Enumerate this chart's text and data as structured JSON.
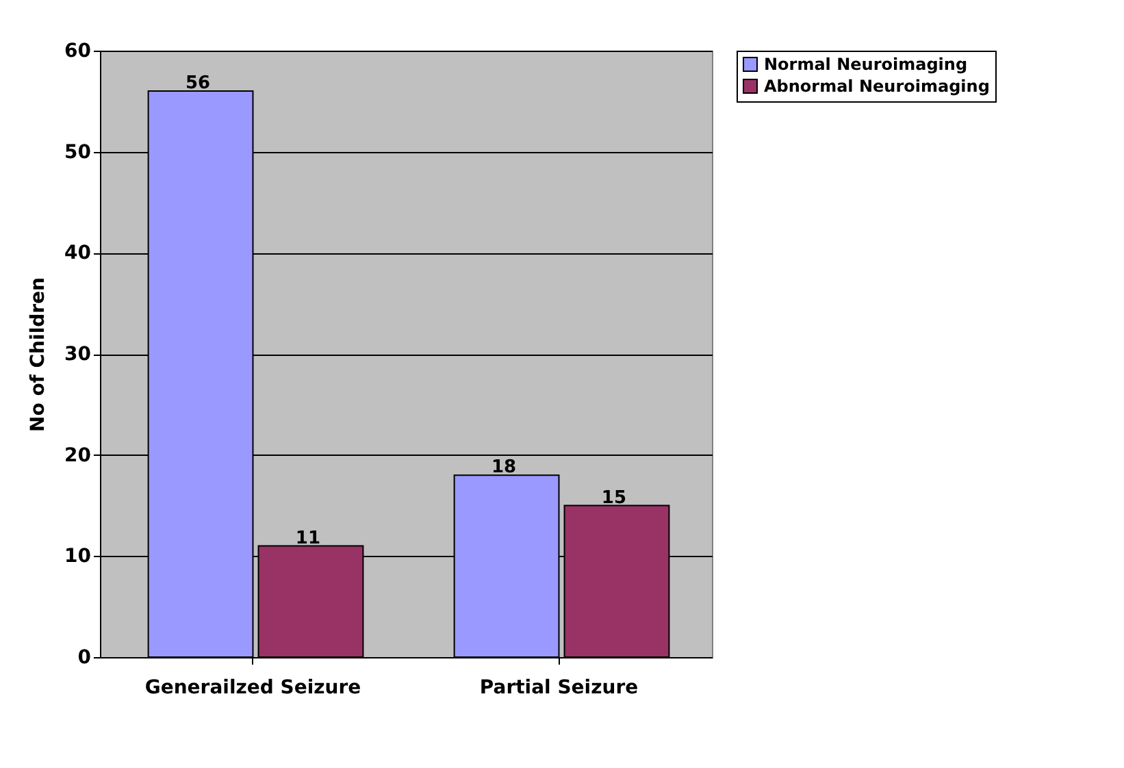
{
  "chart_data": {
    "type": "bar",
    "ylabel": "No of Children",
    "categories": [
      "Generailzed Seizure",
      "Partial Seizure"
    ],
    "series": [
      {
        "name": "Normal Neuroimaging",
        "color": "#9999ff",
        "values": [
          56,
          18
        ]
      },
      {
        "name": "Abnormal Neuroimaging",
        "color": "#993366",
        "values": [
          11,
          15
        ]
      }
    ],
    "ylim": [
      0,
      60
    ],
    "yticks": [
      0,
      10,
      20,
      30,
      40,
      50,
      60
    ],
    "grid": "y",
    "legend": "right",
    "data_labels": true
  }
}
